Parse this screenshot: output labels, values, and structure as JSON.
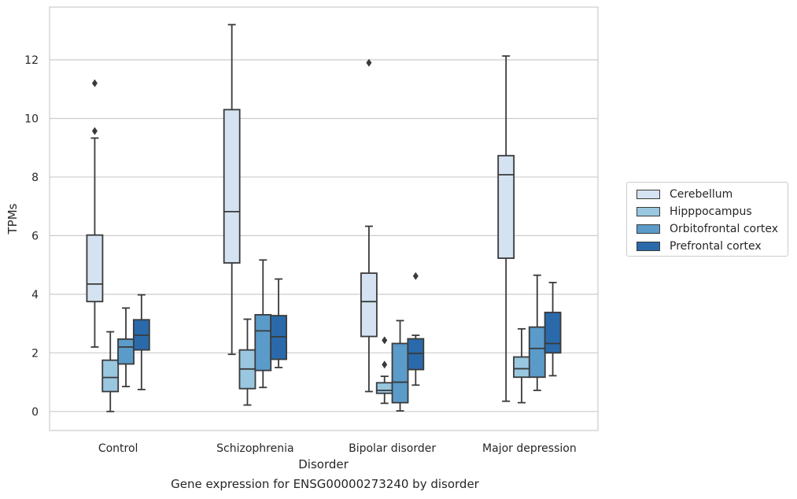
{
  "caption": "Gene expression for ENSG00000273240 by disorder",
  "chart_data": {
    "type": "box",
    "xlabel": "Disorder",
    "ylabel": "TPMs",
    "ylim": [
      -0.65,
      13.8
    ],
    "yticks": [
      0,
      2,
      4,
      6,
      8,
      10,
      12
    ],
    "grid": "horizontal",
    "legend_position": "right",
    "categories": [
      "Control",
      "Schizophrenia",
      "Bipolar disorder",
      "Major depression"
    ],
    "series": [
      {
        "name": "Cerebellum",
        "color": "#d4e2f1",
        "boxes": [
          {
            "whisker_low": 2.2,
            "q1": 3.75,
            "median": 4.35,
            "q3": 6.02,
            "whisker_high": 9.33,
            "outliers": [
              9.57,
              11.2
            ]
          },
          {
            "whisker_low": 1.95,
            "q1": 5.07,
            "median": 6.82,
            "q3": 10.3,
            "whisker_high": 13.2,
            "outliers": []
          },
          {
            "whisker_low": 0.68,
            "q1": 2.56,
            "median": 3.75,
            "q3": 4.72,
            "whisker_high": 6.32,
            "outliers": [
              11.9
            ]
          },
          {
            "whisker_low": 0.35,
            "q1": 5.23,
            "median": 8.08,
            "q3": 8.73,
            "whisker_high": 12.13,
            "outliers": []
          }
        ]
      },
      {
        "name": "Hipppocampus",
        "color": "#9ac7e0",
        "boxes": [
          {
            "whisker_low": 0.0,
            "q1": 0.68,
            "median": 1.16,
            "q3": 1.75,
            "whisker_high": 2.72,
            "outliers": []
          },
          {
            "whisker_low": 0.22,
            "q1": 0.78,
            "median": 1.45,
            "q3": 2.1,
            "whisker_high": 3.15,
            "outliers": []
          },
          {
            "whisker_low": 0.28,
            "q1": 0.62,
            "median": 0.72,
            "q3": 0.98,
            "whisker_high": 1.2,
            "outliers": [
              1.6,
              2.43
            ]
          },
          {
            "whisker_low": 0.3,
            "q1": 1.17,
            "median": 1.46,
            "q3": 1.86,
            "whisker_high": 2.82,
            "outliers": []
          }
        ]
      },
      {
        "name": "Orbitofrontal cortex",
        "color": "#5a9bc9",
        "boxes": [
          {
            "whisker_low": 0.85,
            "q1": 1.62,
            "median": 2.2,
            "q3": 2.47,
            "whisker_high": 3.53,
            "outliers": []
          },
          {
            "whisker_low": 0.82,
            "q1": 1.4,
            "median": 2.75,
            "q3": 3.3,
            "whisker_high": 5.17,
            "outliers": []
          },
          {
            "whisker_low": 0.02,
            "q1": 0.3,
            "median": 1.0,
            "q3": 2.32,
            "whisker_high": 3.1,
            "outliers": []
          },
          {
            "whisker_low": 0.72,
            "q1": 1.17,
            "median": 2.15,
            "q3": 2.88,
            "whisker_high": 4.65,
            "outliers": []
          }
        ]
      },
      {
        "name": "Prefrontal cortex",
        "color": "#2a6aaa",
        "boxes": [
          {
            "whisker_low": 0.75,
            "q1": 2.1,
            "median": 2.6,
            "q3": 3.13,
            "whisker_high": 3.98,
            "outliers": []
          },
          {
            "whisker_low": 1.5,
            "q1": 1.78,
            "median": 2.55,
            "q3": 3.27,
            "whisker_high": 4.52,
            "outliers": []
          },
          {
            "whisker_low": 0.9,
            "q1": 1.43,
            "median": 1.98,
            "q3": 2.48,
            "whisker_high": 2.6,
            "outliers": [
              4.62
            ]
          },
          {
            "whisker_low": 1.22,
            "q1": 2.0,
            "median": 2.32,
            "q3": 3.38,
            "whisker_high": 4.4,
            "outliers": []
          }
        ]
      }
    ]
  }
}
